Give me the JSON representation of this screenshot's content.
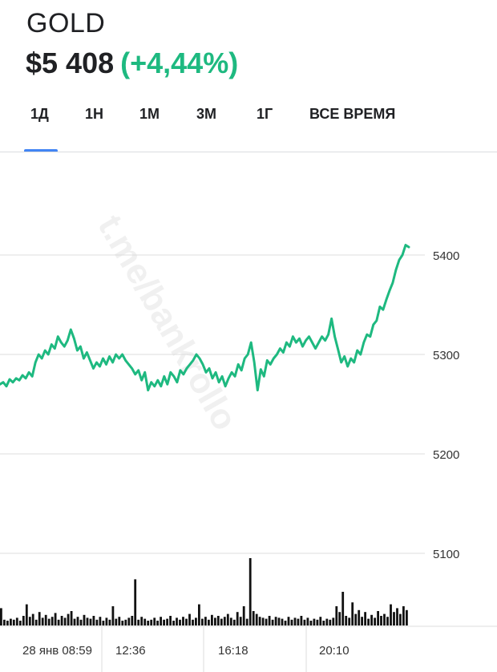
{
  "asset": {
    "name": "GOLD",
    "price": "$5 408",
    "change": "(+4,44%)",
    "change_color": "#1eb980"
  },
  "tabs": [
    {
      "label": "1Д",
      "selected": true
    },
    {
      "label": "1Н",
      "selected": false
    },
    {
      "label": "1М",
      "selected": false
    },
    {
      "label": "3М",
      "selected": false
    },
    {
      "label": "1Г",
      "selected": false
    },
    {
      "label": "ВСЕ ВРЕМЯ",
      "selected": false
    }
  ],
  "watermark": "t.me/bankrollo",
  "colors": {
    "line": "#1eb980",
    "tab_indicator": "#4285f4",
    "volume": "#111111"
  },
  "chart_data": {
    "type": "line",
    "title": "",
    "xlabel": "",
    "ylabel": "",
    "ylim": [
      5025,
      5475
    ],
    "y_ticks": [
      5100,
      5200,
      5300,
      5400
    ],
    "x_tick_labels": [
      "28 янв 08:59",
      "12:36",
      "16:18",
      "20:10"
    ],
    "grid": true,
    "series": [
      {
        "values": [
          5270,
          5272,
          5268,
          5275,
          5272,
          5276,
          5274,
          5279,
          5276,
          5282,
          5278,
          5292,
          5300,
          5296,
          5304,
          5300,
          5310,
          5306,
          5318,
          5312,
          5308,
          5314,
          5325,
          5316,
          5304,
          5308,
          5296,
          5302,
          5294,
          5286,
          5292,
          5288,
          5296,
          5290,
          5298,
          5292,
          5300,
          5296,
          5300,
          5294,
          5290,
          5286,
          5280,
          5284,
          5274,
          5282,
          5264,
          5272,
          5268,
          5274,
          5268,
          5278,
          5270,
          5282,
          5278,
          5272,
          5284,
          5280,
          5286,
          5290,
          5294,
          5300,
          5296,
          5290,
          5282,
          5286,
          5276,
          5282,
          5272,
          5278,
          5268,
          5276,
          5282,
          5278,
          5290,
          5284,
          5296,
          5300,
          5312,
          5292,
          5264,
          5285,
          5278,
          5294,
          5290,
          5296,
          5300,
          5306,
          5302,
          5312,
          5308,
          5318,
          5312,
          5316,
          5308,
          5314,
          5318,
          5312,
          5306,
          5312,
          5318,
          5314,
          5320,
          5336,
          5318,
          5305,
          5292,
          5298,
          5288,
          5296,
          5292,
          5304,
          5300,
          5312,
          5320,
          5318,
          5330,
          5334,
          5348,
          5345,
          5355,
          5364,
          5372,
          5385,
          5395,
          5400,
          5410,
          5408
        ]
      }
    ],
    "volume": [
      18,
      6,
      5,
      7,
      6,
      8,
      5,
      10,
      22,
      9,
      12,
      6,
      14,
      8,
      11,
      7,
      9,
      13,
      6,
      10,
      8,
      12,
      15,
      7,
      9,
      6,
      11,
      8,
      7,
      10,
      6,
      9,
      5,
      8,
      6,
      20,
      7,
      9,
      5,
      6,
      8,
      10,
      48,
      6,
      9,
      7,
      5,
      6,
      8,
      5,
      9,
      6,
      7,
      10,
      5,
      8,
      6,
      9,
      7,
      12,
      6,
      8,
      22,
      7,
      9,
      6,
      11,
      8,
      10,
      7,
      9,
      12,
      8,
      6,
      14,
      9,
      20,
      7,
      70,
      15,
      12,
      9,
      8,
      7,
      10,
      6,
      9,
      8,
      7,
      5,
      9,
      6,
      8,
      7,
      10,
      6,
      8,
      5,
      7,
      6,
      9,
      5,
      7,
      6,
      8,
      20,
      14,
      35,
      10,
      8,
      24,
      12,
      16,
      9,
      14,
      7,
      11,
      8,
      15,
      10,
      12,
      9,
      22,
      14,
      18,
      12,
      20,
      16
    ]
  }
}
